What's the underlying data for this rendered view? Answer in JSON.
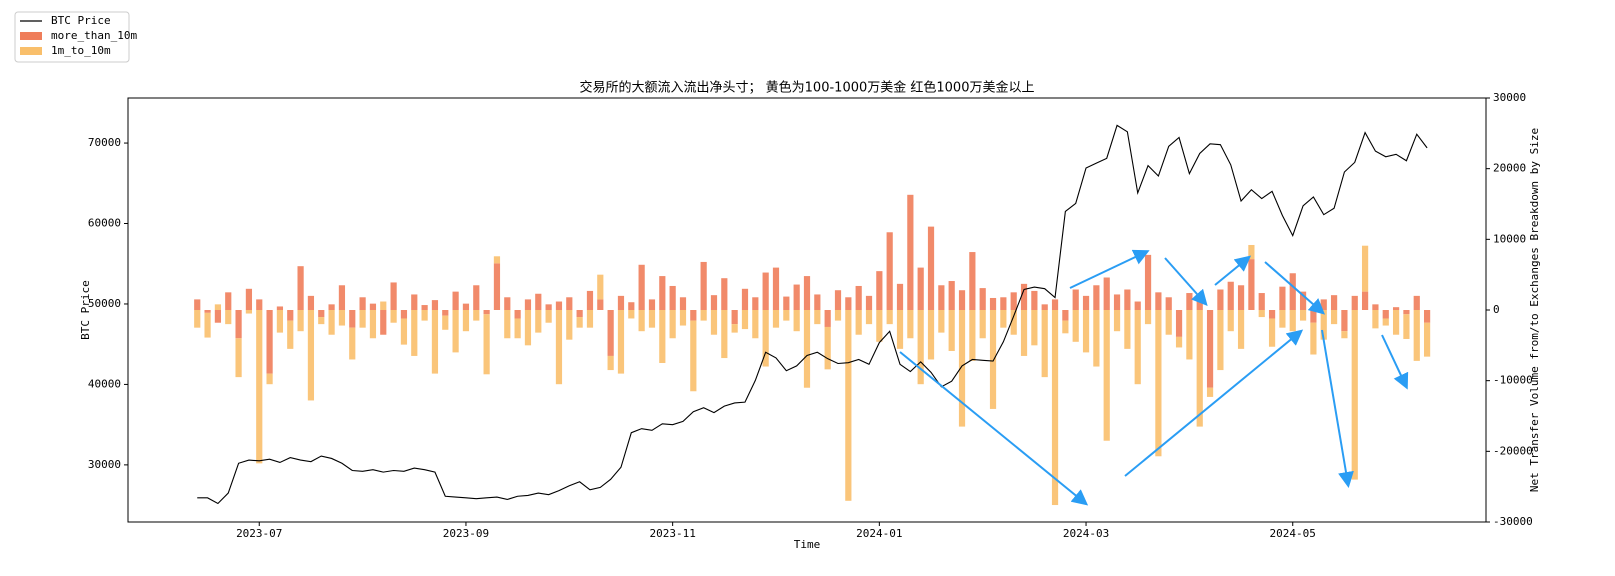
{
  "chart_data": {
    "type": "combo",
    "title": "交易所的大额流入流出净头寸； 黄色为100-1000万美金 红色1000万美金以上",
    "xlabel": "Time",
    "ylabel": "BTC Price",
    "y2label": "Net Transfer Volume from/to Exchanges Breakdown by Size",
    "xlim": [
      -1.27,
      11.87
    ],
    "xticks": [
      {
        "value": 0,
        "label": "2023-07"
      },
      {
        "value": 2,
        "label": "2023-09"
      },
      {
        "value": 4,
        "label": "2023-11"
      },
      {
        "value": 6,
        "label": "2024-01"
      },
      {
        "value": 8,
        "label": "2024-03"
      },
      {
        "value": 10,
        "label": "2024-05"
      }
    ],
    "ylim": [
      22900,
      75600
    ],
    "yticks": [
      30000,
      40000,
      50000,
      60000,
      70000
    ],
    "y2lim": [
      -30000,
      30000
    ],
    "y2ticks": [
      -30000,
      -20000,
      -10000,
      0,
      10000,
      20000,
      30000
    ],
    "legend": "upper left",
    "x": [
      -0.6,
      -0.5,
      -0.4,
      -0.3,
      -0.2,
      -0.1,
      0,
      0.1,
      0.2,
      0.3,
      0.4,
      0.5,
      0.6,
      0.7,
      0.8,
      0.9,
      1,
      1.1,
      1.2,
      1.3,
      1.4,
      1.5,
      1.6,
      1.7,
      1.8,
      1.9,
      2,
      2.1,
      2.2,
      2.3,
      2.4,
      2.5,
      2.6,
      2.7,
      2.8,
      2.9,
      3,
      3.1,
      3.2,
      3.3,
      3.4,
      3.5,
      3.6,
      3.7,
      3.8,
      3.9,
      4,
      4.1,
      4.2,
      4.3,
      4.4,
      4.5,
      4.6,
      4.7,
      4.8,
      4.9,
      5,
      5.1,
      5.2,
      5.3,
      5.4,
      5.5,
      5.6,
      5.7,
      5.8,
      5.9,
      6,
      6.1,
      6.2,
      6.3,
      6.4,
      6.5,
      6.6,
      6.7,
      6.8,
      6.9,
      7,
      7.1,
      7.2,
      7.3,
      7.4,
      7.5,
      7.6,
      7.7,
      7.8,
      7.9,
      8,
      8.1,
      8.2,
      8.3,
      8.4,
      8.5,
      8.6,
      8.7,
      8.8,
      8.9,
      9,
      9.1,
      9.2,
      9.3,
      9.4,
      9.5,
      9.6,
      9.7,
      9.8,
      9.9,
      10,
      10.1,
      10.2,
      10.3,
      10.4,
      10.5,
      10.6,
      10.7,
      10.8,
      10.9,
      11,
      11.1,
      11.2,
      11.3
    ],
    "series": [
      {
        "name": "BTC Price",
        "type": "line",
        "color": "#000000",
        "axis": "y",
        "values": [
          25900,
          25900,
          25200,
          26500,
          30200,
          30600,
          30500,
          30700,
          30300,
          30900,
          30600,
          30400,
          31100,
          30800,
          30200,
          29300,
          29200,
          29400,
          29100,
          29300,
          29200,
          29600,
          29400,
          29100,
          26100,
          26000,
          25900,
          25800,
          25900,
          26000,
          25700,
          26100,
          26200,
          26500,
          26300,
          26800,
          27400,
          27900,
          26900,
          27200,
          28200,
          29700,
          34000,
          34500,
          34300,
          35100,
          35000,
          35400,
          36600,
          37100,
          36500,
          37300,
          37700,
          37800,
          40500,
          44000,
          43300,
          41700,
          42300,
          43600,
          44000,
          43200,
          42600,
          42700,
          43100,
          42500,
          45200,
          46600,
          42500,
          41600,
          42800,
          41500,
          39700,
          40400,
          42300,
          43100,
          43000,
          42900,
          45300,
          48500,
          51800,
          52100,
          51900,
          50800,
          61500,
          62500,
          66900,
          67500,
          68100,
          72200,
          71400,
          63800,
          67200,
          65900,
          69600,
          70700,
          66200,
          68700,
          69900,
          69800,
          67300,
          62800,
          64200,
          63100,
          64000,
          61000,
          58500,
          62200,
          63300,
          61100,
          61900,
          66400,
          67600,
          71300,
          69000,
          68300,
          68600,
          67800,
          71100,
          69400
        ]
      },
      {
        "name": "more_than_10m",
        "type": "bar",
        "color": "#ef7d5a",
        "axis": "y2",
        "values": [
          1500,
          -400,
          -1800,
          2500,
          -4000,
          3000,
          1500,
          -9000,
          500,
          -1500,
          6200,
          2000,
          -1000,
          800,
          3500,
          -2500,
          1800,
          900,
          -3500,
          3900,
          -1200,
          2200,
          700,
          1400,
          -800,
          2600,
          900,
          3500,
          -600,
          6600,
          1800,
          -1200,
          1500,
          2300,
          800,
          1200,
          1800,
          -1000,
          2700,
          1500,
          -6500,
          2000,
          1100,
          6400,
          1500,
          4800,
          3400,
          1800,
          -1500,
          6800,
          2100,
          4500,
          -2000,
          3000,
          1800,
          5300,
          6000,
          1900,
          3600,
          4800,
          2200,
          -2400,
          2800,
          1800,
          3400,
          2000,
          5500,
          11000,
          3700,
          16300,
          6000,
          11800,
          3500,
          4100,
          2800,
          8200,
          3100,
          1700,
          1800,
          2500,
          3700,
          2700,
          800,
          1500,
          -1500,
          2900,
          2000,
          3500,
          4600,
          2200,
          2900,
          1200,
          7800,
          2500,
          1800,
          -3800,
          2400,
          1800,
          -11000,
          2900,
          4000,
          3500,
          7200,
          2400,
          -1200,
          3300,
          5200,
          2600,
          -1800,
          1500,
          2100,
          -3000,
          2000,
          2600,
          800,
          -1200,
          400,
          -600,
          2000,
          -1800
        ]
      },
      {
        "name": "1m_to_10m",
        "type": "bar",
        "color": "#f9bf6b",
        "axis": "y2",
        "values": [
          -2500,
          -3500,
          800,
          -2000,
          -5500,
          -500,
          -21700,
          -1500,
          -3200,
          -4000,
          -3000,
          -12800,
          -1000,
          -3500,
          -2200,
          -4500,
          -2500,
          -4000,
          1200,
          -1800,
          -3700,
          -6500,
          -1500,
          -9000,
          -2000,
          -6000,
          -3000,
          -1500,
          -8500,
          1000,
          -4000,
          -2800,
          -5000,
          -3200,
          -1800,
          -10500,
          -4200,
          -1500,
          -2500,
          3500,
          -2000,
          -9000,
          -1200,
          -3000,
          -2500,
          -7500,
          -4000,
          -2200,
          -10000,
          -1500,
          -3500,
          -6800,
          -1200,
          -2700,
          -4000,
          -8000,
          -2500,
          -1500,
          -3000,
          -11000,
          -2000,
          -6000,
          -1500,
          -27000,
          -3500,
          -2000,
          -4500,
          -2000,
          -5500,
          -4000,
          -10500,
          -7000,
          -3200,
          -5800,
          -16500,
          -7200,
          -4000,
          -14000,
          -2500,
          -3500,
          -6500,
          -5000,
          -9500,
          -27600,
          -1800,
          -4500,
          -6000,
          -8000,
          -18500,
          -3000,
          -5500,
          -10500,
          -2000,
          -20700,
          -3500,
          -1500,
          -7000,
          -16500,
          -1300,
          -8500,
          -3000,
          -5500,
          2000,
          -1000,
          -4000,
          -2500,
          -3000,
          -1500,
          -4500,
          -4200,
          -2000,
          -1000,
          -24000,
          6500,
          -2600,
          -1000,
          -3500,
          -3500,
          -7200,
          -4800
        ]
      }
    ]
  }
}
